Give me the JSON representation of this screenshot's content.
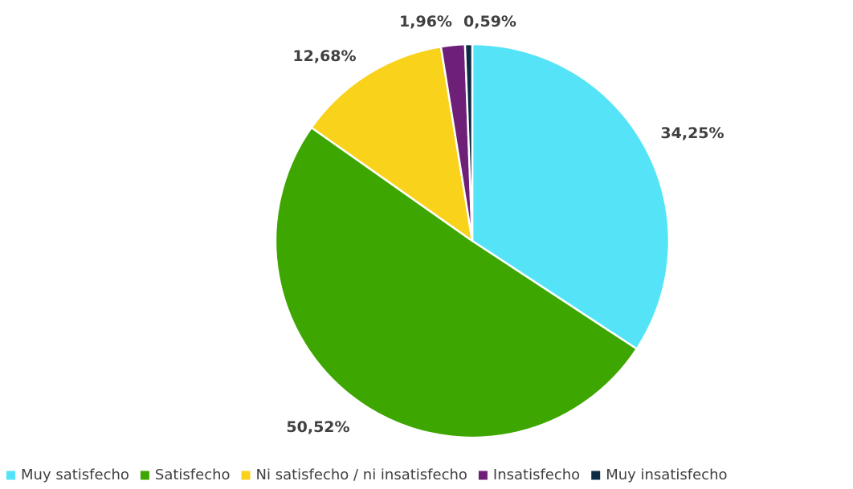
{
  "chart_data": {
    "type": "pie",
    "categories": [
      "Muy satisfecho",
      "Satisfecho",
      "Ni satisfecho / ni insatisfecho",
      "Insatisfecho",
      "Muy insatisfecho"
    ],
    "values": [
      34.25,
      50.52,
      12.68,
      1.96,
      0.59
    ],
    "data_labels": [
      "34,25%",
      "50,52%",
      "12,68%",
      "1,96%",
      "0,59%"
    ],
    "colors": [
      "#55E4F7",
      "#3DA600",
      "#F9D21C",
      "#6E2079",
      "#0E2B45"
    ],
    "start_angle_deg": 0,
    "direction": "clockwise",
    "legend_position": "bottom",
    "title": ""
  }
}
